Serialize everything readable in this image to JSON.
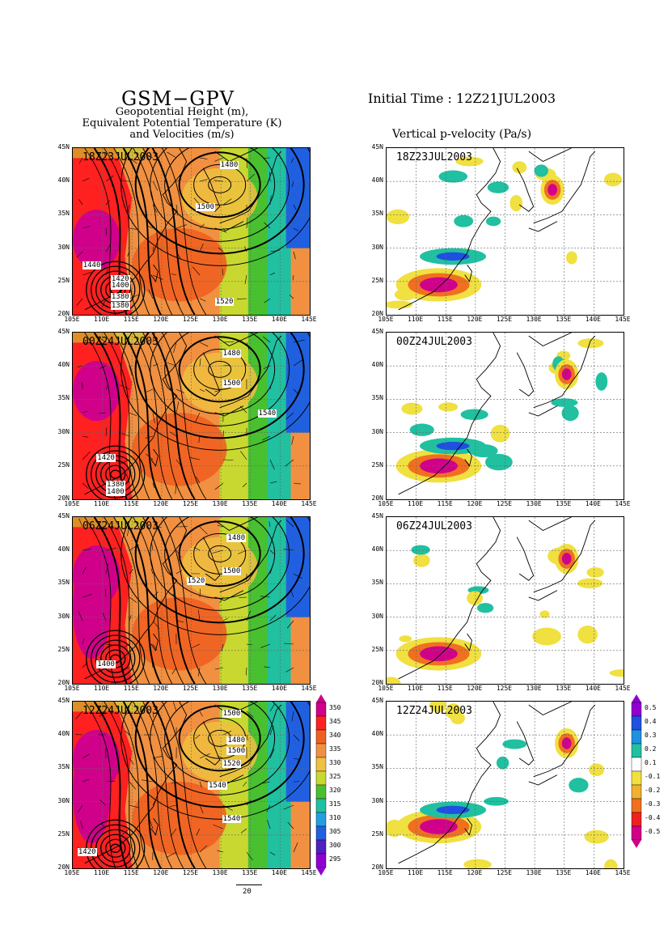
{
  "header": {
    "model": "GSM−GPV",
    "subtitle_lines": [
      "Geopotential Height (m),",
      "Equivalent Potential Temperature (K)",
      "and Velocities (m/s)"
    ],
    "initial_time": "Initial Time : 12Z21JUL2003",
    "right_title": "Vertical p-velocity (Pa/s)"
  },
  "axes": {
    "lat_labels": [
      "45N",
      "40N",
      "35N",
      "30N",
      "25N",
      "20N"
    ],
    "lon_labels": [
      "105E",
      "110E",
      "115E",
      "120E",
      "125E",
      "130E",
      "135E",
      "140E",
      "145E"
    ]
  },
  "panels_left": [
    {
      "time": "18Z23JUL2003",
      "contour_labels": [
        "1480",
        "1500",
        "1440",
        "1420",
        "1400",
        "1380",
        "1380",
        "1520"
      ]
    },
    {
      "time": "00Z24JUL2003",
      "contour_labels": [
        "1480",
        "1500",
        "1540",
        "1420",
        "1380",
        "1400"
      ]
    },
    {
      "time": "06Z24JUL2003",
      "contour_labels": [
        "1480",
        "1500",
        "1520",
        "1400"
      ]
    },
    {
      "time": "12Z24JUL2003",
      "contour_labels": [
        "1500",
        "1480",
        "1500",
        "1520",
        "1540",
        "1540",
        "1420"
      ]
    }
  ],
  "panels_right": [
    {
      "time": "18Z23JUL2003"
    },
    {
      "time": "00Z24JUL2003"
    },
    {
      "time": "06Z24JUL2003"
    },
    {
      "time": "12Z24JUL2003"
    }
  ],
  "colorbar_left": {
    "levels": [
      "350",
      "345",
      "340",
      "335",
      "330",
      "325",
      "320",
      "315",
      "310",
      "305",
      "300",
      "295"
    ],
    "colors": [
      "#d0008a",
      "#ff2020",
      "#f06020",
      "#f09040",
      "#f0c040",
      "#c8d830",
      "#48c030",
      "#20c0a0",
      "#20a0e0",
      "#2060e0",
      "#5020c0",
      "#9000d0"
    ]
  },
  "colorbar_right": {
    "levels": [
      "0.5",
      "0.4",
      "0.3",
      "0.2",
      "0.1",
      "-0.1",
      "-0.2",
      "-0.3",
      "-0.4",
      "-0.5"
    ],
    "colors": [
      "#9000d0",
      "#2050e0",
      "#2090e0",
      "#20c0a0",
      "#ffffff",
      "#f0e040",
      "#f0b030",
      "#f07020",
      "#f02020",
      "#d0008a"
    ]
  },
  "vector_key": {
    "value": "20"
  }
}
